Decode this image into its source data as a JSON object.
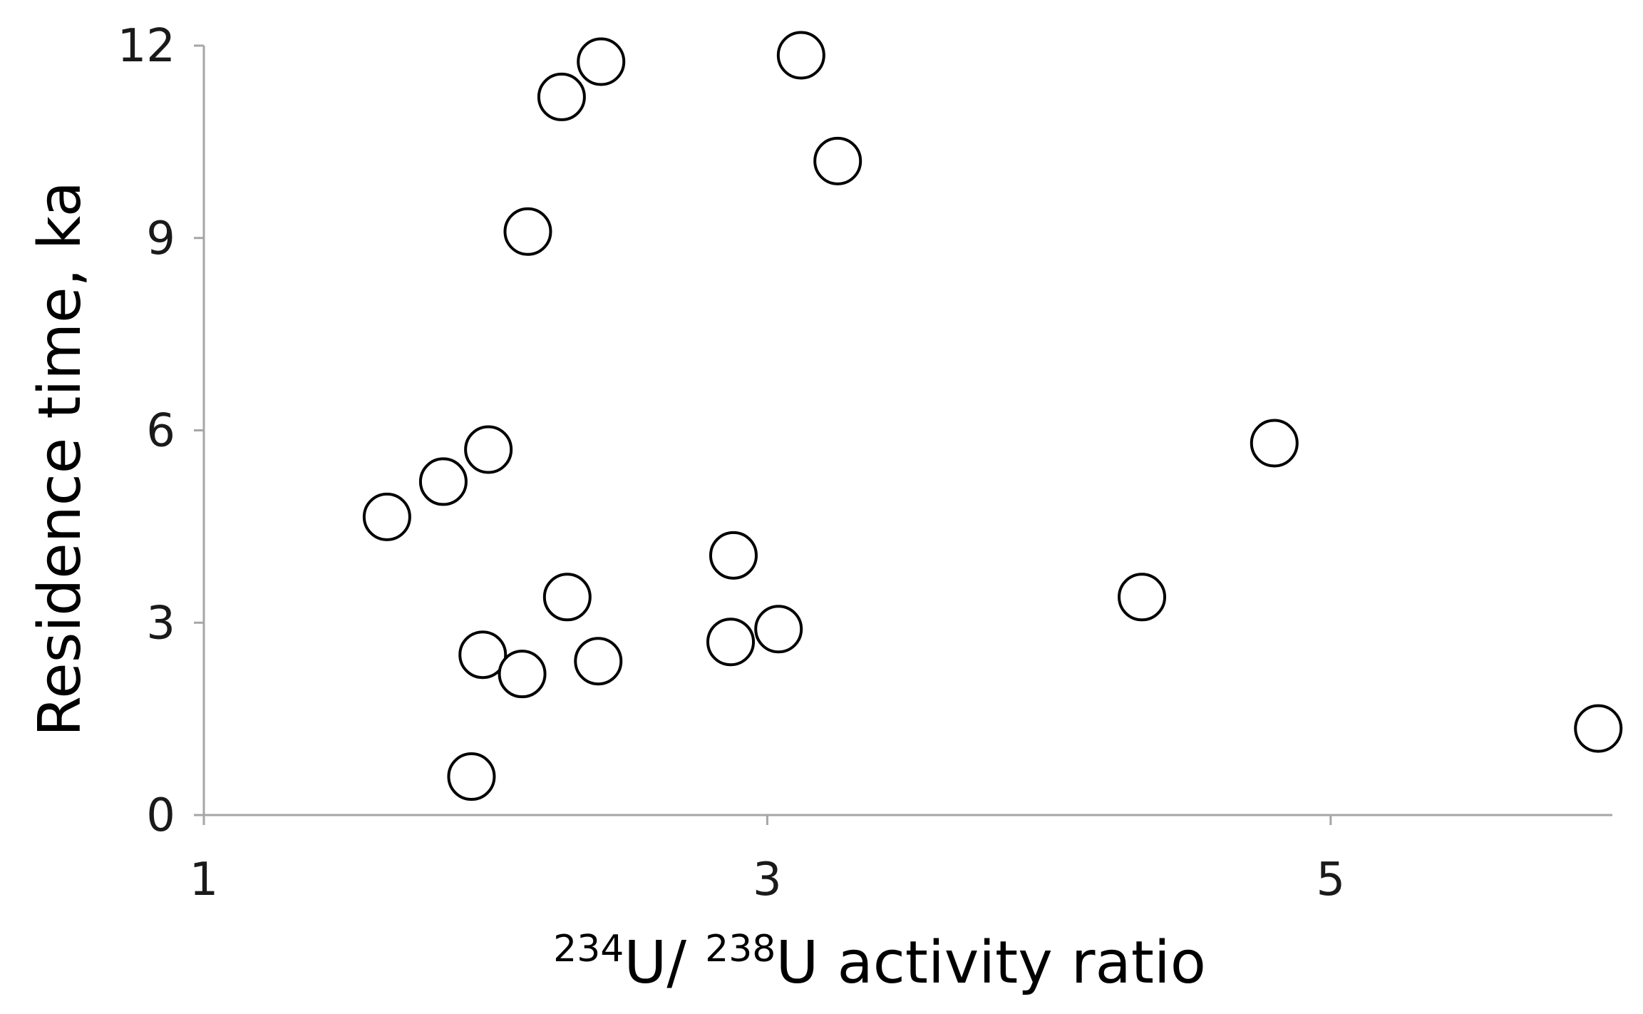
{
  "chart_data": {
    "type": "scatter",
    "title": "",
    "xlabel": {
      "parts": [
        {
          "sup": "234"
        },
        {
          "text": "U/ "
        },
        {
          "sup": "238"
        },
        {
          "text": "U activity ratio"
        }
      ]
    },
    "ylabel": "Residence time, ka",
    "xlim": [
      1,
      6.0
    ],
    "ylim": [
      0,
      12
    ],
    "xticks": [
      1,
      3,
      5
    ],
    "yticks": [
      0,
      3,
      6,
      9,
      12
    ],
    "grid": false,
    "marker": "open-circle",
    "colors": {
      "axis": "#a6a6a6",
      "marker_stroke": "#000000",
      "marker_fill": "#ffffff"
    },
    "points": [
      {
        "x": 1.65,
        "y": 4.65
      },
      {
        "x": 1.85,
        "y": 5.2
      },
      {
        "x": 2.01,
        "y": 5.7
      },
      {
        "x": 1.95,
        "y": 0.6
      },
      {
        "x": 1.99,
        "y": 2.5
      },
      {
        "x": 2.13,
        "y": 2.2
      },
      {
        "x": 2.15,
        "y": 9.1
      },
      {
        "x": 2.27,
        "y": 11.2
      },
      {
        "x": 2.29,
        "y": 3.4
      },
      {
        "x": 2.41,
        "y": 11.75
      },
      {
        "x": 2.4,
        "y": 2.4
      },
      {
        "x": 2.88,
        "y": 4.05
      },
      {
        "x": 2.87,
        "y": 2.7
      },
      {
        "x": 3.04,
        "y": 2.9
      },
      {
        "x": 3.12,
        "y": 11.85
      },
      {
        "x": 3.25,
        "y": 10.2
      },
      {
        "x": 4.33,
        "y": 3.4
      },
      {
        "x": 4.8,
        "y": 5.8
      },
      {
        "x": 5.95,
        "y": 1.35
      }
    ]
  }
}
